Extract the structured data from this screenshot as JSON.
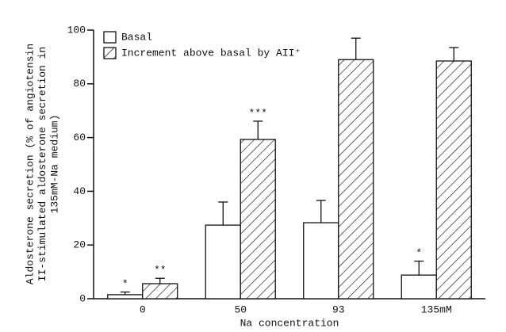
{
  "chart_data": {
    "type": "bar",
    "ylabel": [
      "Aldosterone secretion (% of angiotensin",
      "II-stimulated aldosterone secretion in",
      "135mM-Na medium)"
    ],
    "xlabel": "Na concentration",
    "categories": [
      "0",
      "50",
      "93",
      "135mM"
    ],
    "series": [
      {
        "name": "Basal",
        "color": "#ffffff",
        "hatch": false,
        "values": [
          1.5,
          27.4,
          28.3,
          8.8
        ],
        "errors": [
          1,
          8.6,
          8.3,
          5.2
        ],
        "annotations": [
          "*",
          null,
          null,
          "*"
        ]
      },
      {
        "name": "Increment above basal by AII⁺",
        "color": "#ffffff",
        "hatch": true,
        "values": [
          5.6,
          59.3,
          89,
          88.5
        ],
        "errors": [
          2,
          6.8,
          8,
          5
        ],
        "annotations": [
          "**",
          "***",
          null,
          null
        ]
      }
    ],
    "ylim": [
      0,
      100
    ],
    "yticks": [
      0,
      20,
      40,
      60,
      80,
      100
    ],
    "grid": false,
    "legend": "top-left"
  }
}
